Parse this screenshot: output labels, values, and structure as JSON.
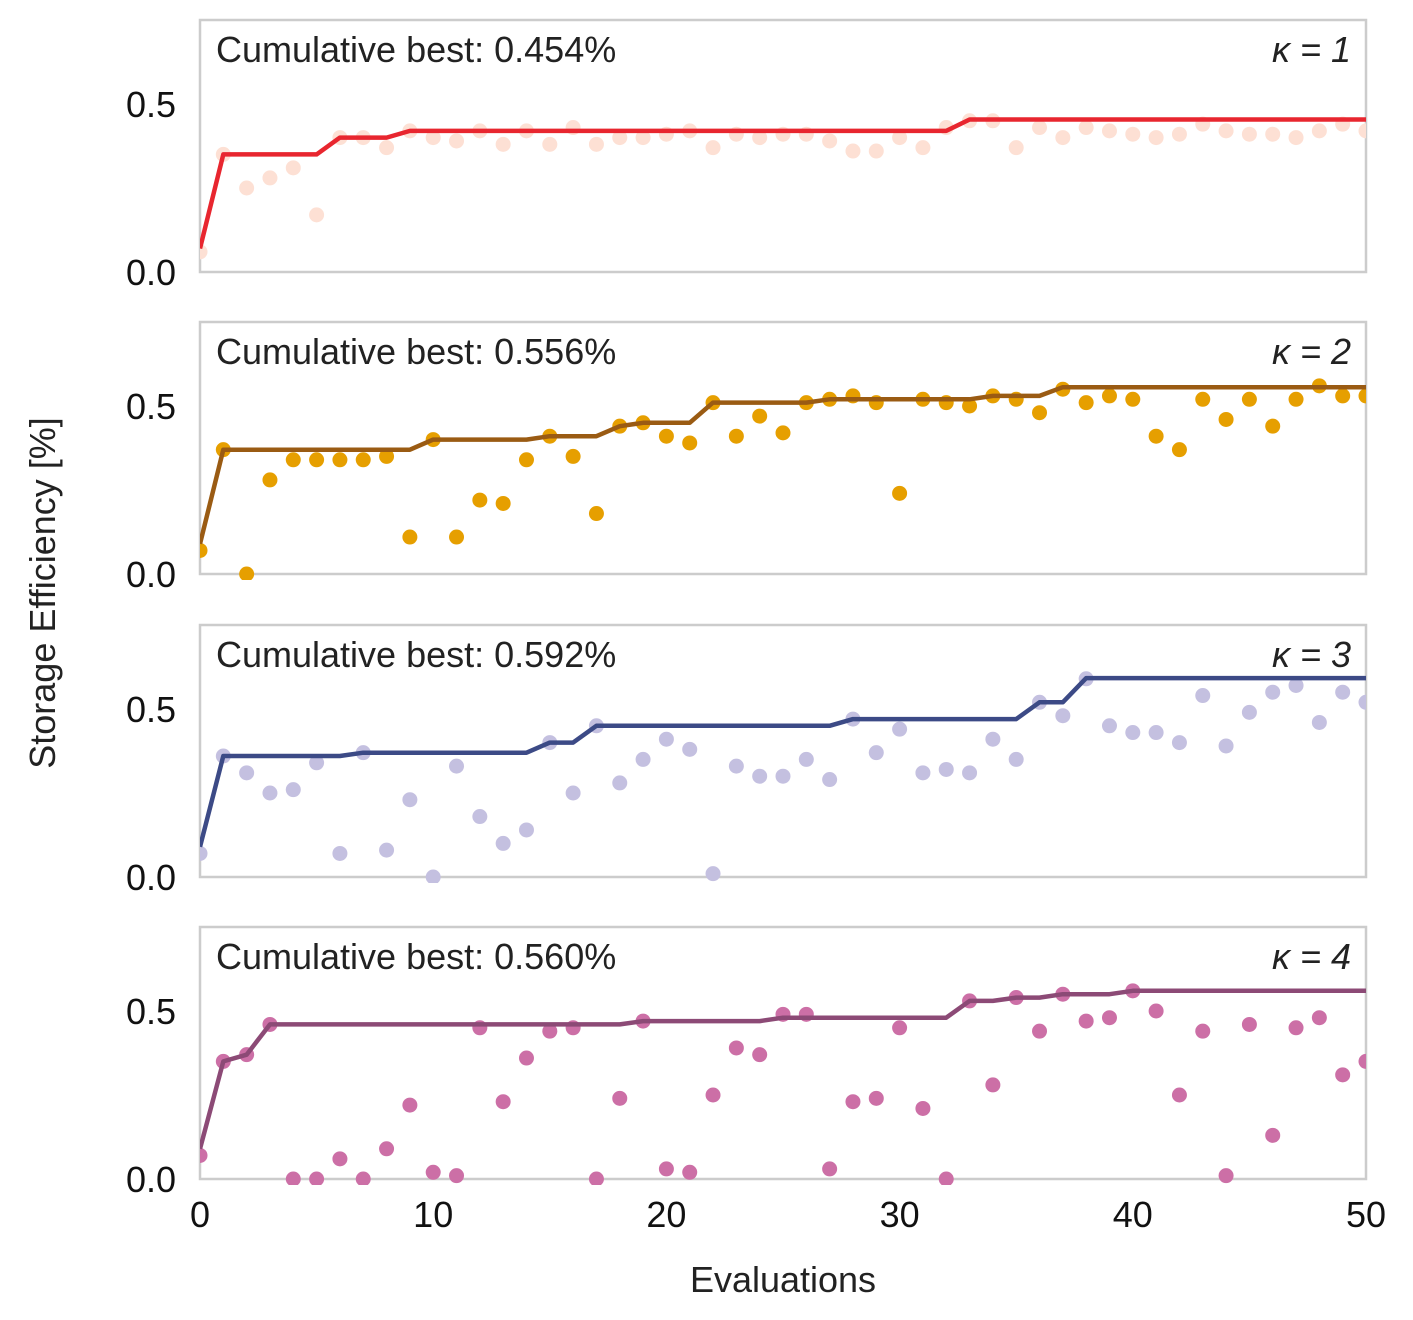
{
  "figure": {
    "ylabel": "Storage Efficiency [%]",
    "xlabel": "Evaluations",
    "xlim": [
      0,
      50
    ],
    "xticks": [
      0,
      10,
      20,
      30,
      40,
      50
    ],
    "xtick_labels": [
      "0",
      "10",
      "20",
      "30",
      "40",
      "50"
    ]
  },
  "chart_data": [
    {
      "type": "scatter+line",
      "annotation": "Cumulative best: 0.454%",
      "kappa_label": "κ = 1",
      "ylim": [
        0,
        0.75
      ],
      "yticks": [
        0,
        0.5
      ],
      "ytick_labels": [
        "0.0",
        "0.5"
      ],
      "point_color": "#fde0d4",
      "line_color": "#e8262f",
      "x": [
        0,
        1,
        2,
        3,
        4,
        5,
        6,
        7,
        8,
        9,
        10,
        11,
        12,
        13,
        14,
        15,
        16,
        17,
        18,
        19,
        20,
        21,
        22,
        23,
        24,
        25,
        26,
        27,
        28,
        29,
        30,
        31,
        32,
        33,
        34,
        35,
        36,
        37,
        38,
        39,
        40,
        41,
        42,
        43,
        44,
        45,
        46,
        47,
        48,
        49,
        50
      ],
      "evaluations": [
        0.06,
        0.35,
        0.25,
        0.28,
        0.31,
        0.17,
        0.4,
        0.4,
        0.37,
        0.42,
        0.4,
        0.39,
        0.42,
        0.38,
        0.42,
        0.38,
        0.43,
        0.38,
        0.4,
        0.4,
        0.41,
        0.42,
        0.37,
        0.41,
        0.4,
        0.41,
        0.41,
        0.39,
        0.36,
        0.36,
        0.4,
        0.37,
        0.43,
        0.45,
        0.45,
        0.37,
        0.43,
        0.4,
        0.43,
        0.42,
        0.41,
        0.4,
        0.41,
        0.44,
        0.42,
        0.41,
        0.41,
        0.4,
        0.42,
        0.44,
        0.42
      ],
      "cumulative_best": [
        0.07,
        0.35,
        0.35,
        0.35,
        0.35,
        0.35,
        0.4,
        0.4,
        0.4,
        0.42,
        0.42,
        0.42,
        0.42,
        0.42,
        0.42,
        0.42,
        0.42,
        0.42,
        0.42,
        0.42,
        0.42,
        0.42,
        0.42,
        0.42,
        0.42,
        0.42,
        0.42,
        0.42,
        0.42,
        0.42,
        0.42,
        0.42,
        0.42,
        0.454,
        0.454,
        0.454,
        0.454,
        0.454,
        0.454,
        0.454,
        0.454,
        0.454,
        0.454,
        0.454,
        0.454,
        0.454,
        0.454,
        0.454,
        0.454,
        0.454,
        0.454
      ]
    },
    {
      "type": "scatter+line",
      "annotation": "Cumulative best: 0.556%",
      "kappa_label": "κ = 2",
      "ylim": [
        0,
        0.75
      ],
      "yticks": [
        0,
        0.5
      ],
      "ytick_labels": [
        "0.0",
        "0.5"
      ],
      "point_color": "#e69f00",
      "line_color": "#9a5b13",
      "x": [
        0,
        1,
        2,
        3,
        4,
        5,
        6,
        7,
        8,
        9,
        10,
        11,
        12,
        13,
        14,
        15,
        16,
        17,
        18,
        19,
        20,
        21,
        22,
        23,
        24,
        25,
        26,
        27,
        28,
        29,
        30,
        31,
        32,
        33,
        34,
        35,
        36,
        37,
        38,
        39,
        40,
        41,
        42,
        43,
        44,
        45,
        46,
        47,
        48,
        49,
        50
      ],
      "evaluations": [
        0.07,
        0.37,
        0.0,
        0.28,
        0.34,
        0.34,
        0.34,
        0.34,
        0.35,
        0.11,
        0.4,
        0.11,
        0.22,
        0.21,
        0.34,
        0.41,
        0.35,
        0.18,
        0.44,
        0.45,
        0.41,
        0.39,
        0.51,
        0.41,
        0.47,
        0.42,
        0.51,
        0.52,
        0.53,
        0.51,
        0.24,
        0.52,
        0.51,
        0.5,
        0.53,
        0.52,
        0.48,
        0.55,
        0.51,
        0.53,
        0.52,
        0.41,
        0.37,
        0.52,
        0.46,
        0.52,
        0.44,
        0.52,
        0.56,
        0.53,
        0.53
      ],
      "cumulative_best": [
        0.09,
        0.37,
        0.37,
        0.37,
        0.37,
        0.37,
        0.37,
        0.37,
        0.37,
        0.37,
        0.4,
        0.4,
        0.4,
        0.4,
        0.4,
        0.41,
        0.41,
        0.41,
        0.44,
        0.45,
        0.45,
        0.45,
        0.51,
        0.51,
        0.51,
        0.51,
        0.51,
        0.52,
        0.52,
        0.52,
        0.52,
        0.52,
        0.52,
        0.52,
        0.53,
        0.53,
        0.53,
        0.556,
        0.556,
        0.556,
        0.556,
        0.556,
        0.556,
        0.556,
        0.556,
        0.556,
        0.556,
        0.556,
        0.556,
        0.556,
        0.556
      ]
    },
    {
      "type": "scatter+line",
      "annotation": "Cumulative best: 0.592%",
      "kappa_label": "κ = 3",
      "ylim": [
        0,
        0.75
      ],
      "yticks": [
        0,
        0.5
      ],
      "ytick_labels": [
        "0.0",
        "0.5"
      ],
      "point_color": "#c4c0e0",
      "line_color": "#3c4a86",
      "x": [
        0,
        1,
        2,
        3,
        4,
        5,
        6,
        7,
        8,
        9,
        10,
        11,
        12,
        13,
        14,
        15,
        16,
        17,
        18,
        19,
        20,
        21,
        22,
        23,
        24,
        25,
        26,
        27,
        28,
        29,
        30,
        31,
        32,
        33,
        34,
        35,
        36,
        37,
        38,
        39,
        40,
        41,
        42,
        43,
        44,
        45,
        46,
        47,
        48,
        49,
        50
      ],
      "evaluations": [
        0.07,
        0.36,
        0.31,
        0.25,
        0.26,
        0.34,
        0.07,
        0.37,
        0.08,
        0.23,
        0.0,
        0.33,
        0.18,
        0.1,
        0.14,
        0.4,
        0.25,
        0.45,
        0.28,
        0.35,
        0.41,
        0.38,
        0.01,
        0.33,
        0.3,
        0.3,
        0.35,
        0.29,
        0.47,
        0.37,
        0.44,
        0.31,
        0.32,
        0.31,
        0.41,
        0.35,
        0.52,
        0.48,
        0.59,
        0.45,
        0.43,
        0.43,
        0.4,
        0.54,
        0.39,
        0.49,
        0.55,
        0.57,
        0.46,
        0.55,
        0.52
      ],
      "cumulative_best": [
        0.09,
        0.36,
        0.36,
        0.36,
        0.36,
        0.36,
        0.36,
        0.37,
        0.37,
        0.37,
        0.37,
        0.37,
        0.37,
        0.37,
        0.37,
        0.4,
        0.4,
        0.45,
        0.45,
        0.45,
        0.45,
        0.45,
        0.45,
        0.45,
        0.45,
        0.45,
        0.45,
        0.45,
        0.47,
        0.47,
        0.47,
        0.47,
        0.47,
        0.47,
        0.47,
        0.47,
        0.52,
        0.52,
        0.592,
        0.592,
        0.592,
        0.592,
        0.592,
        0.592,
        0.592,
        0.592,
        0.592,
        0.592,
        0.592,
        0.592,
        0.592
      ]
    },
    {
      "type": "scatter+line",
      "annotation": "Cumulative best: 0.560%",
      "kappa_label": "κ = 4",
      "ylim": [
        0,
        0.75
      ],
      "yticks": [
        0,
        0.5
      ],
      "ytick_labels": [
        "0.0",
        "0.5"
      ],
      "point_color": "#cc6fa6",
      "line_color": "#8c4a76",
      "x": [
        0,
        1,
        2,
        3,
        4,
        5,
        6,
        7,
        8,
        9,
        10,
        11,
        12,
        13,
        14,
        15,
        16,
        17,
        18,
        19,
        20,
        21,
        22,
        23,
        24,
        25,
        26,
        27,
        28,
        29,
        30,
        31,
        32,
        33,
        34,
        35,
        36,
        37,
        38,
        39,
        40,
        41,
        42,
        43,
        44,
        45,
        46,
        47,
        48,
        49,
        50
      ],
      "evaluations": [
        0.07,
        0.35,
        0.37,
        0.46,
        0.0,
        0.0,
        0.06,
        0.0,
        0.09,
        0.22,
        0.02,
        0.01,
        0.45,
        0.23,
        0.36,
        0.44,
        0.45,
        0.0,
        0.24,
        0.47,
        0.03,
        0.02,
        0.25,
        0.39,
        0.37,
        0.49,
        0.49,
        0.03,
        0.23,
        0.24,
        0.45,
        0.21,
        0.0,
        0.53,
        0.28,
        0.54,
        0.44,
        0.55,
        0.47,
        0.48,
        0.56,
        0.5,
        0.25,
        0.44,
        0.01,
        0.46,
        0.13,
        0.45,
        0.48,
        0.31,
        0.35
      ],
      "cumulative_best": [
        0.09,
        0.35,
        0.37,
        0.46,
        0.46,
        0.46,
        0.46,
        0.46,
        0.46,
        0.46,
        0.46,
        0.46,
        0.46,
        0.46,
        0.46,
        0.46,
        0.46,
        0.46,
        0.46,
        0.47,
        0.47,
        0.47,
        0.47,
        0.47,
        0.47,
        0.48,
        0.48,
        0.48,
        0.48,
        0.48,
        0.48,
        0.48,
        0.48,
        0.53,
        0.53,
        0.54,
        0.54,
        0.55,
        0.55,
        0.55,
        0.56,
        0.56,
        0.56,
        0.56,
        0.56,
        0.56,
        0.56,
        0.56,
        0.56,
        0.56,
        0.56
      ]
    }
  ]
}
